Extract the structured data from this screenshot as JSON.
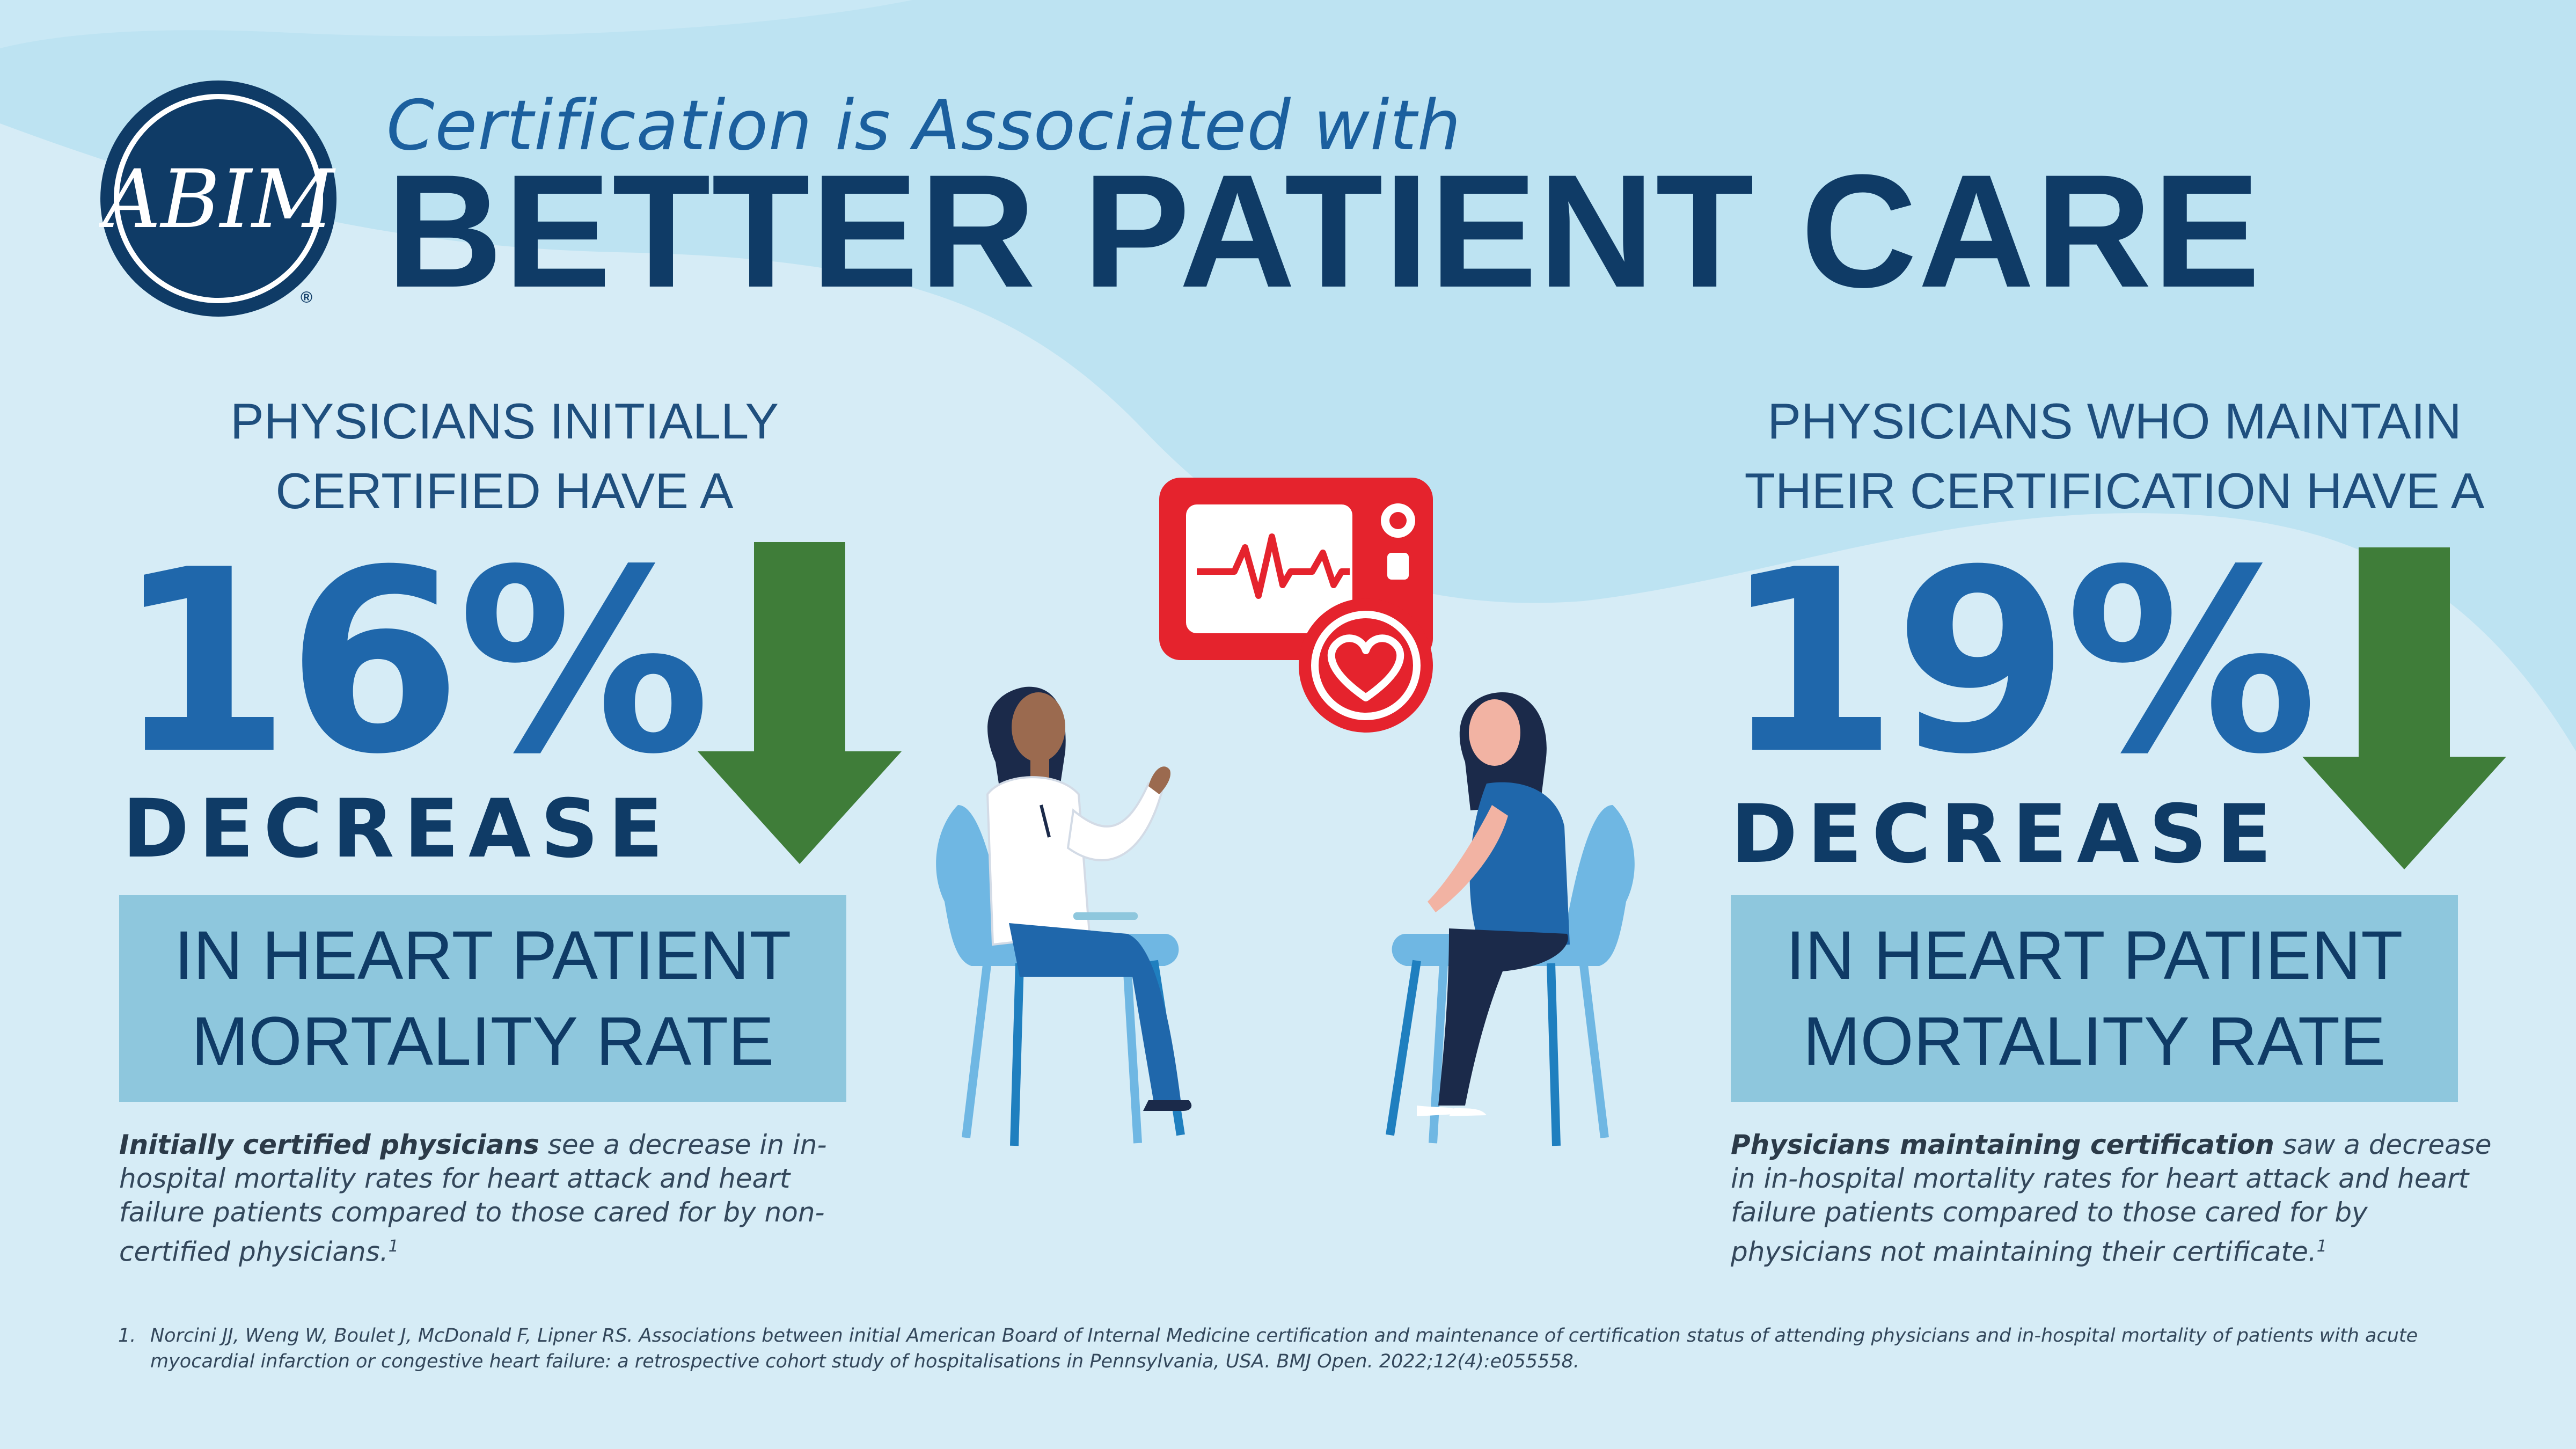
{
  "header": {
    "subtitle": "Certification is Associated with",
    "title": "BETTER PATIENT CARE",
    "logo_text": "ABIM",
    "registered_mark": "®"
  },
  "left_panel": {
    "lead_line1": "PHYSICIANS INITIALLY",
    "lead_line2": "CERTIFIED HAVE A",
    "percentage": "16%",
    "change_label": "DECREASE",
    "box_line1": "IN HEART PATIENT",
    "box_line2": "MORTALITY RATE",
    "description_bold": "Initially certified physicians",
    "description_rest": " see a decrease in in-hospital mortality rates for heart attack and heart failure patients compared to those cared for by non-certified physicians.",
    "superscript": "1"
  },
  "right_panel": {
    "lead_line1": "PHYSICIANS WHO MAINTAIN",
    "lead_line2": "THEIR CERTIFICATION HAVE A",
    "percentage": "19%",
    "change_label": "DECREASE",
    "box_line1": "IN HEART PATIENT",
    "box_line2": "MORTALITY RATE",
    "description_bold": "Physicians maintaining certification",
    "description_rest": " saw a decrease in in-hospital mortality rates for heart attack and heart failure patients compared to those cared for by physicians not maintaining their certificate.",
    "superscript": "1"
  },
  "footnote": {
    "number": "1.",
    "text": "Norcini JJ, Weng W, Boulet J, McDonald F, Lipner RS. Associations between initial American Board of Internal Medicine certification and maintenance of certification status of attending physicians and in-hospital mortality of patients with acute myocardial infarction or congestive heart failure: a retrospective cohort study of hospitalisations in Pennsylvania, USA. BMJ Open. 2022;12(4):e055558."
  },
  "illustration": {
    "icons": [
      "heart-monitor-icon",
      "heart-icon",
      "doctor-figure",
      "patient-figure",
      "chair-icon"
    ]
  },
  "colors": {
    "background": "#d6ecf6",
    "wave": "#bde3f2",
    "navy": "#0f3b66",
    "accent_blue": "#1f67ab",
    "arrow_green": "#3f7d39",
    "box_blue": "#8ec7dd",
    "monitor_red": "#e5232d"
  }
}
